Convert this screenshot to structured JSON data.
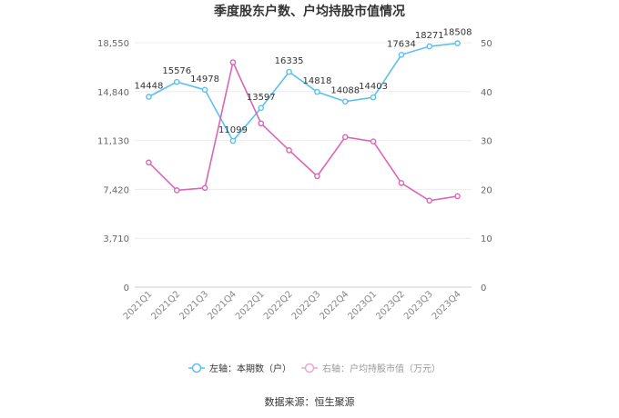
{
  "chart_data": {
    "type": "line",
    "title": "季度股东户数、户均持股市值情况",
    "categories": [
      "2021Q1",
      "2021Q2",
      "2021Q3",
      "2021Q4",
      "2022Q1",
      "2022Q2",
      "2022Q3",
      "2022Q4",
      "2023Q1",
      "2023Q2",
      "2023Q3",
      "2023Q4"
    ],
    "series": [
      {
        "name": "左轴：本期数（户）",
        "axis": "left",
        "color": "#5bc0f0",
        "values": [
          14448,
          15576,
          14978,
          11099,
          13597,
          16335,
          14818,
          14088,
          14403,
          17634,
          18271,
          18508
        ],
        "data_labels": [
          "14448",
          "15576",
          "14978",
          "11099",
          "13597",
          "16335",
          "14818",
          "14088",
          "14403",
          "17634",
          "18271",
          "18508"
        ]
      },
      {
        "name": "右轴：户均持股市值（万元）",
        "axis": "right",
        "color": "#d966b5",
        "values": [
          25.5,
          19.8,
          20.3,
          46.0,
          33.5,
          28.0,
          22.7,
          30.7,
          29.8,
          21.3,
          17.7,
          18.6
        ]
      }
    ],
    "left_axis": {
      "min": 0,
      "max": 18550,
      "ticks": [
        0,
        3710,
        7420,
        11130,
        14840,
        18550
      ],
      "tick_labels": [
        "0",
        "3,710",
        "7,420",
        "11,130",
        "14,840",
        "18,550"
      ]
    },
    "right_axis": {
      "min": 0,
      "max": 50,
      "ticks": [
        0,
        10,
        20,
        30,
        40,
        50
      ],
      "tick_labels": [
        "0",
        "10",
        "20",
        "30",
        "40",
        "50"
      ]
    },
    "grid": true,
    "legend_position": "bottom"
  },
  "footer": {
    "source": "数据来源：恒生聚源"
  }
}
